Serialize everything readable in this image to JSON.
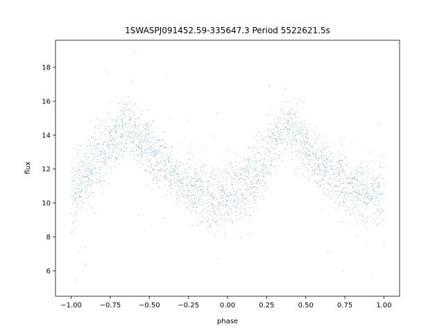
{
  "chart_data": {
    "type": "scatter",
    "title": "1SWASPJ091452.59-335647.3 Period 5522621.5s",
    "xlabel": "phase",
    "ylabel": "flux",
    "xlim": [
      -1.1,
      1.1
    ],
    "ylim": [
      4.5,
      19.6
    ],
    "xticks": [
      -1.0,
      -0.75,
      -0.5,
      -0.25,
      0.0,
      0.25,
      0.5,
      0.75,
      1.0
    ],
    "xtick_labels": [
      "−1.00",
      "−0.75",
      "−0.50",
      "−0.25",
      "0.00",
      "0.25",
      "0.50",
      "0.75",
      "1.00"
    ],
    "yticks": [
      6,
      8,
      10,
      12,
      14,
      16,
      18
    ],
    "ytick_labels": [
      "6",
      "8",
      "10",
      "12",
      "14",
      "16",
      "18"
    ],
    "grid": false,
    "marker_color": "#1f77b4",
    "series": [
      {
        "x": [
          -1.0,
          -0.96,
          -0.92,
          -0.88,
          -0.84,
          -0.8,
          -0.76,
          -0.72,
          -0.68,
          -0.65,
          -0.62,
          -0.58,
          -0.55,
          -0.5,
          -0.45,
          -0.4,
          -0.35,
          -0.3,
          -0.25,
          -0.2,
          -0.15,
          -0.1,
          -0.05,
          0.0,
          0.05,
          0.1,
          0.15,
          0.2,
          0.25,
          0.3,
          0.34,
          0.38,
          0.42,
          0.45,
          0.5,
          0.55,
          0.6,
          0.65,
          0.7,
          0.75,
          0.8,
          0.85,
          0.9,
          0.95,
          1.0
        ],
        "y": [
          10.5,
          11.0,
          11.5,
          12.0,
          12.5,
          12.9,
          13.3,
          13.8,
          14.3,
          14.6,
          14.4,
          14.0,
          13.7,
          13.2,
          12.6,
          12.2,
          11.8,
          11.4,
          11.1,
          10.8,
          10.5,
          10.3,
          10.3,
          10.4,
          10.6,
          11.0,
          11.5,
          12.1,
          12.7,
          13.3,
          14.2,
          14.5,
          14.1,
          13.9,
          13.2,
          12.7,
          12.2,
          11.8,
          11.4,
          11.1,
          10.9,
          10.7,
          10.6,
          10.5,
          10.5
        ],
        "spread": [
          1.6,
          1.5,
          1.5,
          1.4,
          1.4,
          1.4,
          1.4,
          1.3,
          1.3,
          1.2,
          1.2,
          1.2,
          1.2,
          1.2,
          1.1,
          1.1,
          1.2,
          1.2,
          1.3,
          1.3,
          1.4,
          1.4,
          1.4,
          1.4,
          1.4,
          1.4,
          1.4,
          1.4,
          1.3,
          1.3,
          1.2,
          1.2,
          1.2,
          1.2,
          1.2,
          1.1,
          1.1,
          1.2,
          1.2,
          1.3,
          1.3,
          1.4,
          1.4,
          1.5,
          1.6
        ]
      }
    ]
  }
}
